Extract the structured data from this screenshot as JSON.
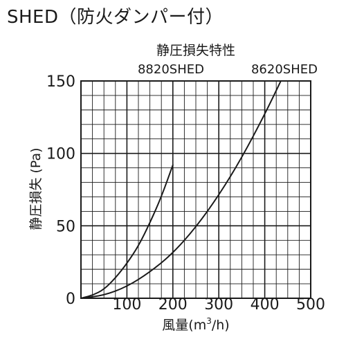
{
  "page_title": "SHED（防火ダンパー付）",
  "chart_data": {
    "type": "line",
    "title": "静圧損失特性",
    "xlabel": "風量(m³/h)",
    "ylabel": "静圧損失 (Pa)",
    "xlim": [
      0,
      500
    ],
    "ylim": [
      0,
      150
    ],
    "x_ticks": [
      100,
      200,
      300,
      400,
      500
    ],
    "y_ticks": [
      0,
      50,
      100,
      150
    ],
    "x_ticks_label": [
      "100",
      "200",
      "300",
      "400",
      "500"
    ],
    "y_ticks_label": [
      "0",
      "50",
      "100",
      "150"
    ],
    "grid": true,
    "series": [
      {
        "name": "8820SHED",
        "color": "#1a1a1a",
        "x": [
          0,
          25,
          50,
          75,
          100,
          125,
          150,
          175,
          200
        ],
        "y": [
          0,
          2,
          6,
          14,
          24,
          36,
          52,
          70,
          92
        ]
      },
      {
        "name": "8620SHED",
        "color": "#1a1a1a",
        "x": [
          0,
          50,
          100,
          150,
          200,
          250,
          300,
          350,
          400,
          435
        ],
        "y": [
          0,
          2,
          8,
          18,
          31,
          49,
          71,
          97,
          127,
          150
        ]
      }
    ]
  }
}
